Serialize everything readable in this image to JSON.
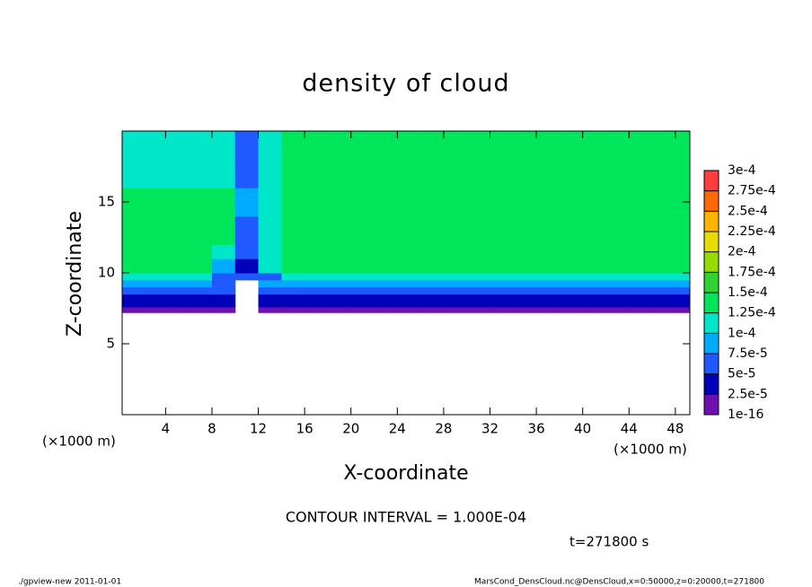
{
  "chart_data": {
    "type": "heatmap",
    "title": "density of cloud",
    "xlabel": "X-coordinate",
    "ylabel": "Z-coordinate",
    "x_unit": "(×1000 m)",
    "contour_interval": "CONTOUR INTERVAL = 1.000E-04",
    "time": "t=271800 s",
    "footer_left": "./gpview-new  2011-01-01",
    "footer_right": "MarsCond_DensCloud.nc@DensCloud,x=0:50000,z=0:20000,t=271800",
    "xlim": [
      0.25,
      49.25
    ],
    "ylim": [
      0,
      20
    ],
    "xticks": [
      4,
      8,
      12,
      16,
      20,
      24,
      28,
      32,
      36,
      40,
      44,
      48
    ],
    "yticks": [
      5,
      10,
      15
    ],
    "levels": [
      {
        "value": 1e-16,
        "label": "1e-16"
      },
      {
        "value": 2.5e-05,
        "label": "2.5e-5"
      },
      {
        "value": 5e-05,
        "label": "5e-5"
      },
      {
        "value": 7.5e-05,
        "label": "7.5e-5"
      },
      {
        "value": 0.0001,
        "label": "1e-4"
      },
      {
        "value": 0.000125,
        "label": "1.25e-4"
      },
      {
        "value": 0.00015,
        "label": "1.5e-4"
      },
      {
        "value": 0.000175,
        "label": "1.75e-4"
      },
      {
        "value": 0.0002,
        "label": "2e-4"
      },
      {
        "value": 0.000225,
        "label": "2.25e-4"
      },
      {
        "value": 0.00025,
        "label": "2.5e-4"
      },
      {
        "value": 0.000275,
        "label": "2.75e-4"
      },
      {
        "value": 0.0003,
        "label": "3e-4"
      }
    ],
    "colors": [
      "#6e10b0",
      "#0000b8",
      "#1e5aff",
      "#00aaff",
      "#00e6c8",
      "#00e65a",
      "#32d232",
      "#96dc00",
      "#e6dc00",
      "#ffb400",
      "#ff6a00",
      "#ff3c3c"
    ],
    "field": {
      "x_edges": [
        0,
        2,
        4,
        6,
        8,
        10,
        12,
        14,
        16,
        18,
        20,
        22,
        24,
        26,
        28,
        30,
        32,
        34,
        36,
        38,
        40,
        42,
        44,
        46,
        48,
        50
      ],
      "z_edges": [
        7.2,
        7.6,
        8,
        8.5,
        9,
        9.5,
        10,
        11,
        12,
        14,
        16,
        18,
        20
      ],
      "values": [
        [
          1e-05,
          1e-05,
          1e-05,
          1e-05,
          1e-05,
          null,
          1e-05,
          1e-05,
          1e-05,
          1e-05,
          1e-05,
          1e-05,
          1e-05,
          1e-05,
          1e-05,
          1e-05,
          1e-05,
          1e-05,
          1e-05,
          1e-05,
          1e-05,
          1e-05,
          1e-05,
          1e-05,
          1e-05
        ],
        [
          3e-05,
          3e-05,
          3e-05,
          3e-05,
          3e-05,
          null,
          3e-05,
          3e-05,
          3e-05,
          3e-05,
          3e-05,
          3e-05,
          3e-05,
          3e-05,
          3e-05,
          3e-05,
          3e-05,
          3e-05,
          3e-05,
          3e-05,
          3e-05,
          3e-05,
          3e-05,
          3e-05,
          3e-05
        ],
        [
          4e-05,
          4e-05,
          4e-05,
          4e-05,
          4e-05,
          null,
          4e-05,
          4e-05,
          4e-05,
          4e-05,
          4e-05,
          4e-05,
          4e-05,
          4e-05,
          4e-05,
          4e-05,
          4e-05,
          4e-05,
          4e-05,
          4e-05,
          4e-05,
          4e-05,
          4e-05,
          4e-05,
          4e-05
        ],
        [
          6e-05,
          6e-05,
          6e-05,
          6e-05,
          6e-05,
          null,
          6e-05,
          6e-05,
          6e-05,
          6e-05,
          6e-05,
          6e-05,
          6e-05,
          6e-05,
          6e-05,
          6e-05,
          6e-05,
          6e-05,
          6e-05,
          6e-05,
          6e-05,
          6e-05,
          6e-05,
          6e-05,
          6e-05
        ],
        [
          8e-05,
          8e-05,
          8e-05,
          8e-05,
          5e-05,
          null,
          8e-05,
          8e-05,
          8e-05,
          8e-05,
          8e-05,
          8e-05,
          8e-05,
          8e-05,
          8e-05,
          8e-05,
          8e-05,
          8e-05,
          8e-05,
          8e-05,
          8e-05,
          8e-05,
          8e-05,
          8e-05,
          8e-05
        ],
        [
          0.000105,
          0.000105,
          0.000105,
          0.000105,
          6e-05,
          5e-05,
          6e-05,
          0.000105,
          0.000105,
          0.000105,
          0.000105,
          0.000105,
          0.000105,
          0.000105,
          0.000105,
          0.000105,
          0.000105,
          0.000105,
          0.000105,
          0.000105,
          0.000105,
          0.000105,
          0.000105,
          0.000105,
          0.000105
        ],
        [
          0.000125,
          0.000125,
          0.000125,
          0.000125,
          9e-05,
          4e-05,
          0.00011,
          0.00013,
          0.00013,
          0.00013,
          0.00013,
          0.00013,
          0.00013,
          0.00013,
          0.00013,
          0.00013,
          0.00013,
          0.00013,
          0.00013,
          0.00013,
          0.00013,
          0.00013,
          0.00013,
          0.00013,
          0.00013
        ],
        [
          0.00014,
          0.00014,
          0.00014,
          0.00014,
          0.00011,
          5e-05,
          0.000105,
          0.00014,
          0.00014,
          0.00014,
          0.00014,
          0.00014,
          0.00014,
          0.00014,
          0.00014,
          0.00014,
          0.00014,
          0.00014,
          0.00014,
          0.00014,
          0.00014,
          0.00014,
          0.00014,
          0.00014,
          0.00014
        ],
        [
          0.00014,
          0.00014,
          0.00014,
          0.000135,
          0.00013,
          7e-05,
          0.00012,
          0.000145,
          0.000145,
          0.000145,
          0.000145,
          0.000145,
          0.000145,
          0.000145,
          0.000145,
          0.000145,
          0.000145,
          0.000145,
          0.000145,
          0.000145,
          0.000145,
          0.000145,
          0.000145,
          0.000145,
          0.000145
        ],
        [
          0.000135,
          0.000135,
          0.000135,
          0.00014,
          0.00013,
          8e-05,
          0.00011,
          0.000145,
          0.000145,
          0.000145,
          0.000145,
          0.000145,
          0.000145,
          0.000145,
          0.000145,
          0.000145,
          0.000145,
          0.000145,
          0.000145,
          0.000145,
          0.000145,
          0.000145,
          0.000145,
          0.000145,
          0.000145
        ],
        [
          0.00012,
          0.00012,
          0.00012,
          0.00012,
          0.000115,
          6e-05,
          0.000105,
          0.000135,
          0.000135,
          0.000135,
          0.000135,
          0.000135,
          0.000135,
          0.000135,
          0.000135,
          0.000135,
          0.000135,
          0.000135,
          0.000135,
          0.000135,
          0.000135,
          0.000135,
          0.000135,
          0.000135,
          0.000135
        ],
        [
          0.000115,
          0.000115,
          0.000115,
          0.000115,
          0.00011,
          5e-05,
          0.0001,
          0.00013,
          0.00013,
          0.00013,
          0.00013,
          0.00013,
          0.00013,
          0.00013,
          0.00013,
          0.00013,
          0.00013,
          0.00013,
          0.00013,
          0.00013,
          0.00013,
          0.00013,
          0.00013,
          0.00013,
          0.00013
        ]
      ]
    }
  }
}
